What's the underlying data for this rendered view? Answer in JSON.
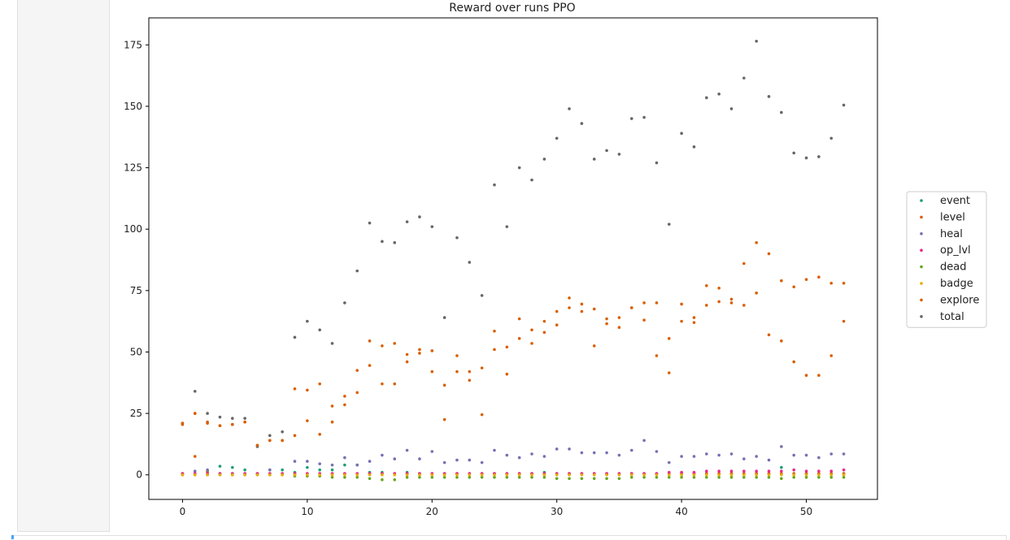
{
  "chart_data": {
    "type": "scatter",
    "title": "Reward over runs PPO",
    "xlabel": "",
    "ylabel": "",
    "xlim": [
      -2.7,
      55.7
    ],
    "ylim": [
      -10.0,
      186.0
    ],
    "xticks": [
      0,
      10,
      20,
      30,
      40,
      50
    ],
    "yticks": [
      0,
      25,
      50,
      75,
      100,
      125,
      150,
      175
    ],
    "grid": false,
    "legend_position": "center-right, outside plot",
    "series": [
      {
        "name": "event",
        "color": "#1b9e77",
        "values": [
          0.5,
          0.5,
          1.5,
          3.5,
          3.0,
          2.0,
          0.5,
          2.0,
          2.0,
          1.0,
          3.0,
          2.0,
          2.0,
          4.0,
          4.0,
          1.0,
          1.0,
          0.5,
          1.0,
          0.5,
          0.5,
          0.5,
          0.5,
          0.5,
          0.5,
          0.5,
          0.5,
          0.5,
          0.5,
          1.0,
          0.5,
          0.5,
          0.5,
          0.5,
          0.5,
          0.5,
          0.5,
          0.5,
          0.5,
          0.5,
          0.5,
          0.5,
          0.5,
          0.5,
          0.5,
          0.5,
          0.5,
          0.5,
          3.0,
          0.5,
          0.5,
          0.5,
          0.5,
          0.5
        ]
      },
      {
        "name": "level",
        "color": "#d95f02",
        "values": [
          0.5,
          7.5,
          1.0,
          0.5,
          0.5,
          0.5,
          0.5,
          0.5,
          0.5,
          0.5,
          0.5,
          0.5,
          0.5,
          0.5,
          0.5,
          0.5,
          0.5,
          0.5,
          0.5,
          0.5,
          0.5,
          0.5,
          0.5,
          0.5,
          0.5,
          0.5,
          0.5,
          0.5,
          0.5,
          0.5,
          0.5,
          0.5,
          0.5,
          0.5,
          0.5,
          0.5,
          0.5,
          0.5,
          0.5,
          0.5,
          0.5,
          0.5,
          0.5,
          0.5,
          0.5,
          0.5,
          0.5,
          0.5,
          0.5,
          0.5,
          0.5,
          0.5,
          0.5,
          0.5
        ]
      },
      {
        "name": "heal",
        "color": "#7570b3",
        "values": [
          0.5,
          1.5,
          2.0,
          0.5,
          0.5,
          0.5,
          0.5,
          2.0,
          0.5,
          5.5,
          5.5,
          4.5,
          4.0,
          7.0,
          4.0,
          5.5,
          8.0,
          6.5,
          10.0,
          6.5,
          9.5,
          5.0,
          6.0,
          6.0,
          5.0,
          10.0,
          8.0,
          7.0,
          8.5,
          7.5,
          10.5,
          10.5,
          9.0,
          9.0,
          9.0,
          8.0,
          10.0,
          14.0,
          9.5,
          5.0,
          7.5,
          7.5,
          8.5,
          8.0,
          8.5,
          6.5,
          7.5,
          6.0,
          11.5,
          8.0,
          8.0,
          7.0,
          8.5,
          8.5
        ]
      },
      {
        "name": "op_lvl",
        "color": "#e7298a",
        "values": [
          0.5,
          0.5,
          0.5,
          0.5,
          0.5,
          0.5,
          0.5,
          0.5,
          0.5,
          0.5,
          0.5,
          0.5,
          0.5,
          0.5,
          0.5,
          0.5,
          0.5,
          0.5,
          0.5,
          0.5,
          0.5,
          0.5,
          0.5,
          0.5,
          0.5,
          0.5,
          0.5,
          0.5,
          0.5,
          0.5,
          0.5,
          0.5,
          0.5,
          0.5,
          0.5,
          0.5,
          0.5,
          0.5,
          0.5,
          1.0,
          1.0,
          1.0,
          1.5,
          1.5,
          1.5,
          1.5,
          1.5,
          1.5,
          1.5,
          2.0,
          1.5,
          1.5,
          1.5,
          2.0
        ]
      },
      {
        "name": "dead",
        "color": "#66a61e",
        "values": [
          0.0,
          0.0,
          0.0,
          0.0,
          0.0,
          0.0,
          0.0,
          0.0,
          0.0,
          -0.5,
          -0.5,
          -0.5,
          -1.0,
          -1.0,
          -1.0,
          -1.5,
          -2.0,
          -2.0,
          -1.0,
          -1.0,
          -1.0,
          -1.0,
          -1.0,
          -1.0,
          -1.0,
          -1.0,
          -1.0,
          -1.0,
          -1.0,
          -1.0,
          -1.5,
          -1.5,
          -1.5,
          -1.5,
          -1.5,
          -1.5,
          -1.0,
          -1.0,
          -1.0,
          -1.0,
          -1.0,
          -1.0,
          -1.0,
          -1.0,
          -1.0,
          -1.0,
          -1.0,
          -1.0,
          -1.5,
          -1.0,
          -1.0,
          -1.0,
          -1.0,
          -1.0
        ]
      },
      {
        "name": "badge",
        "color": "#e6ab02",
        "values": [
          0.0,
          0.0,
          0.0,
          0.0,
          0.0,
          0.0,
          0.0,
          0.0,
          0.0,
          0.0,
          0.0,
          0.0,
          0.0,
          0.0,
          0.0,
          0.0,
          0.0,
          0.0,
          0.0,
          0.0,
          0.0,
          0.0,
          0.0,
          0.0,
          0.0,
          0.0,
          0.0,
          0.0,
          0.0,
          0.0,
          0.0,
          0.0,
          0.0,
          0.0,
          0.0,
          0.0,
          0.0,
          0.0,
          0.0,
          0.0,
          0.0,
          0.0,
          0.0,
          0.0,
          0.0,
          0.0,
          0.0,
          0.0,
          0.0,
          0.0,
          0.0,
          0.0,
          0.0,
          0.0
        ]
      },
      {
        "name": "explore",
        "color": "#d95f02",
        "values": [
          20.5,
          25.0,
          21.5,
          20.0,
          20.5,
          21.5,
          12.0,
          14.0,
          14.0,
          16.0,
          22.0,
          16.5,
          21.5,
          28.5,
          33.5,
          44.5,
          37.0,
          37.0,
          46.0,
          49.5,
          42.0,
          22.5,
          42.0,
          38.5,
          24.5,
          51.0,
          41.0,
          55.5,
          53.5,
          58.0,
          61.0,
          68.0,
          66.5,
          52.5,
          61.5,
          60.0,
          68.0,
          63.0,
          48.5,
          41.5,
          62.5,
          62.0,
          69.0,
          70.5,
          70.0,
          69.0,
          74.0,
          57.0,
          54.5,
          46.0,
          40.5,
          40.5,
          48.5,
          62.5
        ]
      },
      {
        "name": "total",
        "color": "#666666",
        "values": [
          21.0,
          34.0,
          25.0,
          23.5,
          23.0,
          23.0,
          11.5,
          16.0,
          17.5,
          56.0,
          62.5,
          59.0,
          53.5,
          70.0,
          83.0,
          102.5,
          95.0,
          94.5,
          103.0,
          105.0,
          101.0,
          64.0,
          96.5,
          86.5,
          73.0,
          118.0,
          101.0,
          125.0,
          120.0,
          128.5,
          137.0,
          149.0,
          143.0,
          128.5,
          132.0,
          130.5,
          145.0,
          145.5,
          127.0,
          102.0,
          139.0,
          133.5,
          153.5,
          155.0,
          149.0,
          161.5,
          176.5,
          154.0,
          147.5,
          131.0,
          129.0,
          129.5,
          137.0,
          150.5
        ]
      }
    ],
    "extra_points": [
      {
        "series": "explore",
        "x": [
          0,
          1,
          2,
          3,
          4,
          5,
          6,
          7,
          8,
          9,
          10,
          11,
          12,
          13,
          14,
          15,
          16,
          17,
          18,
          19,
          20,
          21,
          22,
          23,
          24,
          25,
          26,
          27,
          28,
          29,
          30,
          31,
          32,
          33,
          34,
          35,
          36,
          37,
          38,
          39,
          40,
          41,
          42,
          43,
          44,
          45,
          46,
          47,
          48,
          49,
          50,
          51,
          52,
          53
        ],
        "values": [
          21.0,
          25.0,
          21.0,
          20.0,
          20.5,
          21.5,
          12.0,
          14.0,
          14.0,
          35.0,
          34.5,
          37.0,
          28.0,
          32.0,
          42.5,
          54.5,
          52.5,
          53.5,
          49.0,
          51.0,
          50.5,
          36.5,
          48.5,
          42.0,
          43.5,
          58.5,
          52.0,
          63.5,
          59.0,
          62.5,
          66.5,
          72.0,
          69.5,
          67.5,
          63.5,
          64.0,
          68.0,
          70.0,
          70.0,
          55.5,
          69.5,
          64.0,
          77.0,
          76.0,
          71.5,
          86.0,
          94.5,
          90.0,
          79.0,
          76.5,
          79.5,
          80.5,
          78.0,
          78.0
        ]
      }
    ]
  }
}
